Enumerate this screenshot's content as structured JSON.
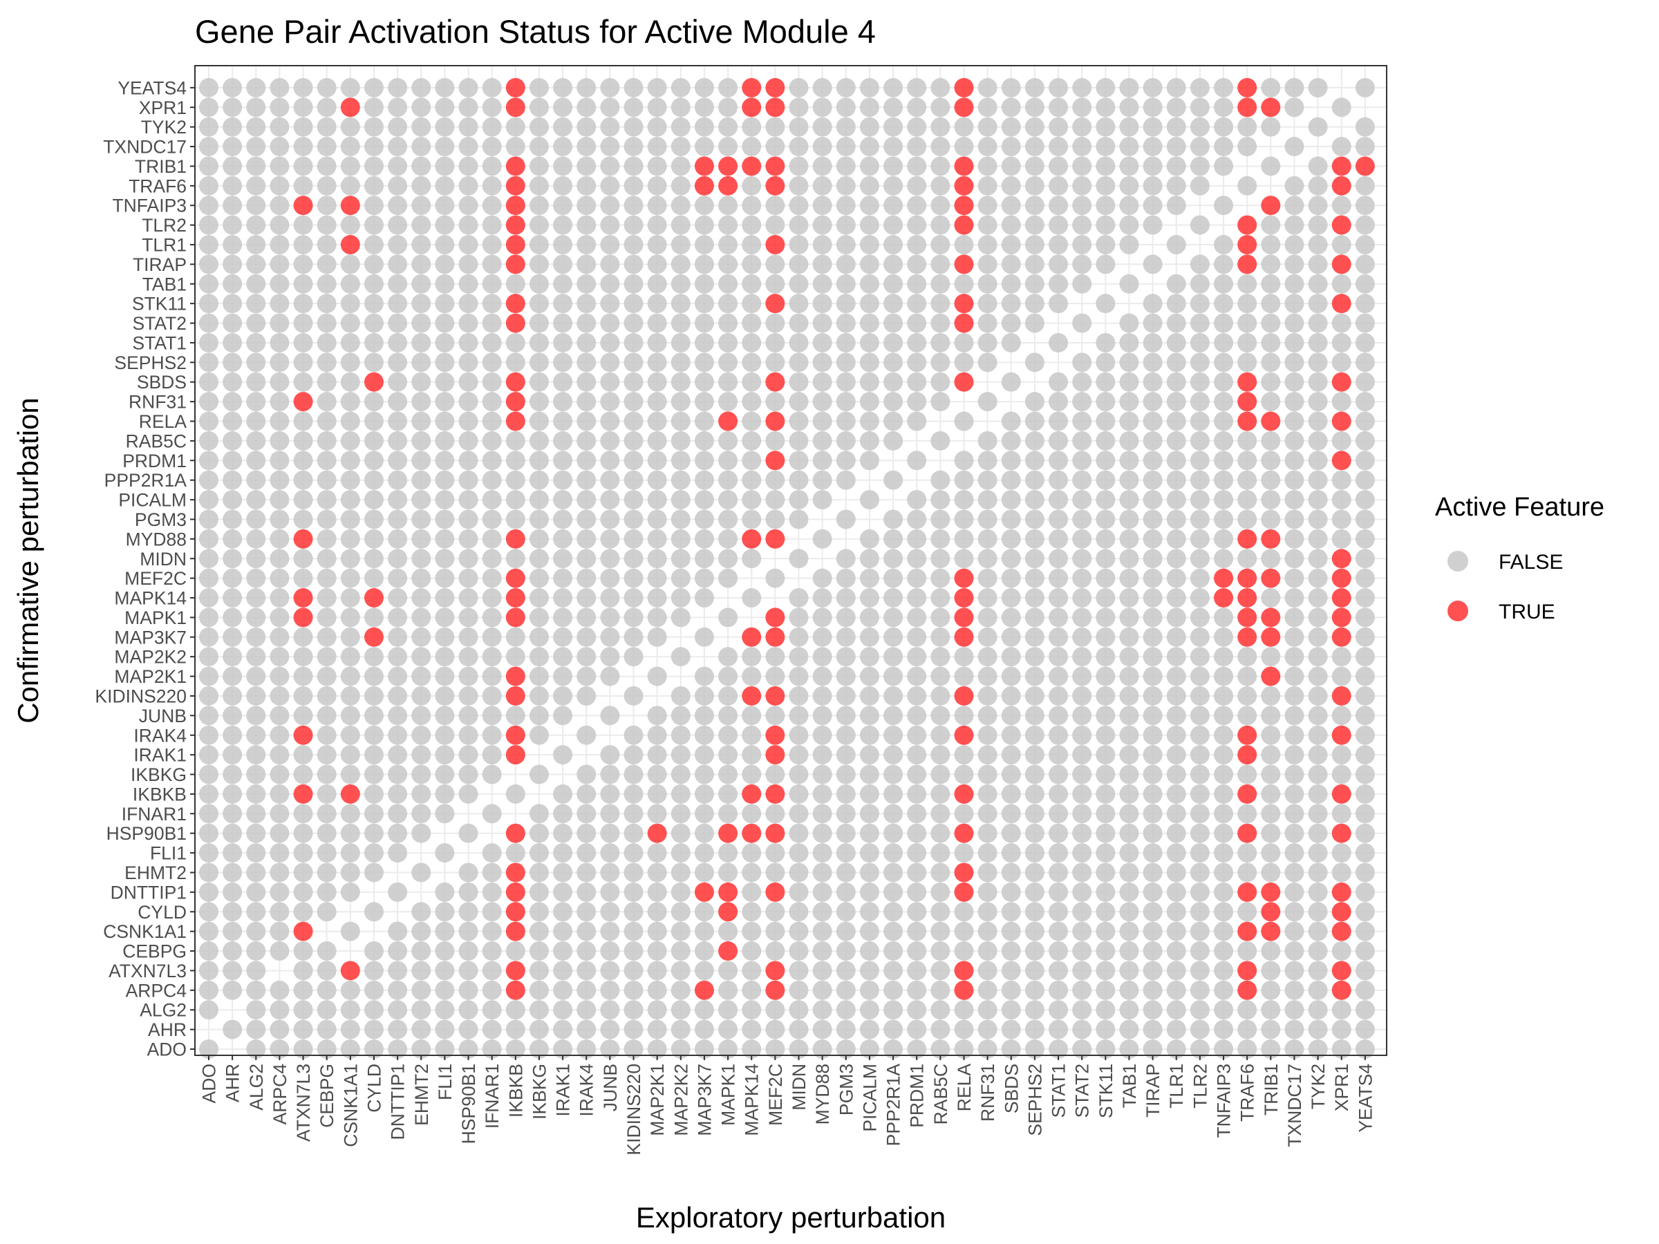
{
  "chart_data": {
    "type": "scatter",
    "title": "Gene Pair Activation Status for Active Module 4",
    "xlabel": "Exploratory perturbation",
    "ylabel": "Confirmative perturbation",
    "grid": true,
    "legend": {
      "title": "Active Feature",
      "position": "right",
      "entries": [
        {
          "label": "FALSE",
          "color": "#c8c8c8"
        },
        {
          "label": "TRUE",
          "color": "#ff3333"
        }
      ]
    },
    "colors": {
      "false": "#c8c8c8",
      "true": "#ff3333"
    },
    "genes": [
      "ADO",
      "AHR",
      "ALG2",
      "ARPC4",
      "ATXN7L3",
      "CEBPG",
      "CSNK1A1",
      "CYLD",
      "DNTTIP1",
      "EHMT2",
      "FLI1",
      "HSP90B1",
      "IFNAR1",
      "IKBKB",
      "IKBKG",
      "IRAK1",
      "IRAK4",
      "JUNB",
      "KIDINS220",
      "MAP2K1",
      "MAP2K2",
      "MAP3K7",
      "MAPK1",
      "MAPK14",
      "MEF2C",
      "MIDN",
      "MYD88",
      "PGM3",
      "PICALM",
      "PPP2R1A",
      "PRDM1",
      "RAB5C",
      "RELA",
      "RNF31",
      "SBDS",
      "SEPHS2",
      "STAT1",
      "STAT2",
      "STK11",
      "TAB1",
      "TIRAP",
      "TLR1",
      "TLR2",
      "TNFAIP3",
      "TRAF6",
      "TRIB1",
      "TXNDC17",
      "TYK2",
      "XPR1",
      "YEATS4"
    ],
    "x_categories": [
      "ADO",
      "AHR",
      "ALG2",
      "ARPC4",
      "ATXN7L3",
      "CEBPG",
      "CSNK1A1",
      "CYLD",
      "DNTTIP1",
      "EHMT2",
      "FLI1",
      "HSP90B1",
      "IFNAR1",
      "IKBKB",
      "IKBKG",
      "IRAK1",
      "IRAK4",
      "JUNB",
      "KIDINS220",
      "MAP2K1",
      "MAP2K2",
      "MAP3K7",
      "MAPK1",
      "MAPK14",
      "MEF2C",
      "MIDN",
      "MYD88",
      "PGM3",
      "PICALM",
      "PPP2R1A",
      "PRDM1",
      "RAB5C",
      "RELA",
      "RNF31",
      "SBDS",
      "SEPHS2",
      "STAT1",
      "STAT2",
      "STK11",
      "TAB1",
      "TIRAP",
      "TLR1",
      "TLR2",
      "TNFAIP3",
      "TRAF6",
      "TRIB1",
      "TXNDC17",
      "TYK2",
      "XPR1",
      "YEATS4"
    ],
    "y_categories": [
      "ADO",
      "AHR",
      "ALG2",
      "ARPC4",
      "ATXN7L3",
      "CEBPG",
      "CSNK1A1",
      "CYLD",
      "DNTTIP1",
      "EHMT2",
      "FLI1",
      "HSP90B1",
      "IFNAR1",
      "IKBKB",
      "IKBKG",
      "IRAK1",
      "IRAK4",
      "JUNB",
      "KIDINS220",
      "MAP2K1",
      "MAP2K2",
      "MAP3K7",
      "MAPK1",
      "MAPK14",
      "MEF2C",
      "MIDN",
      "MYD88",
      "PGM3",
      "PICALM",
      "PPP2R1A",
      "PRDM1",
      "RAB5C",
      "RELA",
      "RNF31",
      "SBDS",
      "SEPHS2",
      "STAT1",
      "STAT2",
      "STK11",
      "TAB1",
      "TIRAP",
      "TLR1",
      "TLR2",
      "TNFAIP3",
      "TRAF6",
      "TRIB1",
      "TXNDC17",
      "TYK2",
      "XPR1",
      "YEATS4"
    ],
    "missing_points": [
      [
        "AHR",
        "ADO"
      ],
      [
        "ADO",
        "AHR"
      ],
      [
        "AHR",
        "ALG2"
      ],
      [
        "ARPC4",
        "ATXN7L3"
      ],
      [
        "CEBPG",
        "CSNK1A1"
      ],
      [
        "CSNK1A1",
        "CEBPG"
      ],
      [
        "CYLD",
        "CSNK1A1"
      ],
      [
        "CSNK1A1",
        "CYLD"
      ],
      [
        "DNTTIP1",
        "CYLD"
      ],
      [
        "CYLD",
        "DNTTIP1"
      ],
      [
        "EHMT2",
        "DNTTIP1"
      ],
      [
        "DNTTIP1",
        "EHMT2"
      ],
      [
        "FLI1",
        "EHMT2"
      ],
      [
        "EHMT2",
        "FLI1"
      ],
      [
        "HSP90B1",
        "FLI1"
      ],
      [
        "FLI1",
        "HSP90B1"
      ],
      [
        "IFNAR1",
        "HSP90B1"
      ],
      [
        "HSP90B1",
        "IFNAR1"
      ],
      [
        "IKBKB",
        "IFNAR1"
      ],
      [
        "IFNAR1",
        "IKBKB"
      ],
      [
        "IKBKG",
        "IKBKB"
      ],
      [
        "IKBKB",
        "IKBKG"
      ],
      [
        "IRAK1",
        "IKBKG"
      ],
      [
        "IKBKG",
        "IRAK1"
      ],
      [
        "IRAK4",
        "IRAK1"
      ],
      [
        "IRAK1",
        "IRAK4"
      ],
      [
        "JUNB",
        "IRAK4"
      ],
      [
        "IRAK4",
        "JUNB"
      ],
      [
        "KIDINS220",
        "JUNB"
      ],
      [
        "JUNB",
        "KIDINS220"
      ],
      [
        "MAP2K1",
        "KIDINS220"
      ],
      [
        "KIDINS220",
        "MAP2K1"
      ],
      [
        "MAP2K2",
        "MAP2K1"
      ],
      [
        "MAP2K1",
        "MAP2K2"
      ],
      [
        "MAP3K7",
        "MAP2K2"
      ],
      [
        "MAP2K2",
        "MAP3K7"
      ],
      [
        "MAPK1",
        "MAP3K7"
      ],
      [
        "MAP3K7",
        "MAPK1"
      ],
      [
        "MAPK14",
        "MAPK1"
      ],
      [
        "MAPK1",
        "MAPK14"
      ],
      [
        "MEF2C",
        "MAPK14"
      ],
      [
        "MAPK14",
        "MEF2C"
      ],
      [
        "MIDN",
        "MEF2C"
      ],
      [
        "MEF2C",
        "MIDN"
      ],
      [
        "MYD88",
        "MIDN"
      ],
      [
        "MIDN",
        "MYD88"
      ],
      [
        "PGM3",
        "MYD88"
      ],
      [
        "MYD88",
        "PGM3"
      ],
      [
        "PICALM",
        "PGM3"
      ],
      [
        "PGM3",
        "PICALM"
      ],
      [
        "PPP2R1A",
        "PICALM"
      ],
      [
        "PICALM",
        "PPP2R1A"
      ],
      [
        "PRDM1",
        "PPP2R1A"
      ],
      [
        "PPP2R1A",
        "PRDM1"
      ],
      [
        "RAB5C",
        "PRDM1"
      ],
      [
        "PRDM1",
        "RAB5C"
      ],
      [
        "RELA",
        "RAB5C"
      ],
      [
        "RAB5C",
        "RELA"
      ],
      [
        "RNF31",
        "RELA"
      ],
      [
        "RELA",
        "RNF31"
      ],
      [
        "SBDS",
        "RNF31"
      ],
      [
        "RNF31",
        "SBDS"
      ],
      [
        "SEPHS2",
        "SBDS"
      ],
      [
        "SBDS",
        "SEPHS2"
      ],
      [
        "STAT1",
        "SEPHS2"
      ],
      [
        "SEPHS2",
        "STAT1"
      ],
      [
        "STAT2",
        "STAT1"
      ],
      [
        "STAT1",
        "STAT2"
      ],
      [
        "STK11",
        "STAT2"
      ],
      [
        "STAT2",
        "STK11"
      ],
      [
        "TAB1",
        "STK11"
      ],
      [
        "STK11",
        "TAB1"
      ],
      [
        "TIRAP",
        "TAB1"
      ],
      [
        "TAB1",
        "TIRAP"
      ],
      [
        "TLR1",
        "TIRAP"
      ],
      [
        "TIRAP",
        "TLR1"
      ],
      [
        "TLR2",
        "TLR1"
      ],
      [
        "TLR1",
        "TLR2"
      ],
      [
        "TNFAIP3",
        "TLR2"
      ],
      [
        "TLR2",
        "TNFAIP3"
      ],
      [
        "TRAF6",
        "TNFAIP3"
      ],
      [
        "TNFAIP3",
        "TRAF6"
      ],
      [
        "TRIB1",
        "TRAF6"
      ],
      [
        "TRAF6",
        "TRIB1"
      ],
      [
        "TXNDC17",
        "TRIB1"
      ],
      [
        "TRIB1",
        "TXNDC17"
      ],
      [
        "TYK2",
        "TXNDC17"
      ],
      [
        "TXNDC17",
        "TYK2"
      ],
      [
        "XPR1",
        "TYK2"
      ],
      [
        "TYK2",
        "XPR1"
      ],
      [
        "YEATS4",
        "XPR1"
      ],
      [
        "XPR1",
        "YEATS4"
      ]
    ],
    "active_points": [
      [
        "IKBKB",
        "YEATS4"
      ],
      [
        "MAPK14",
        "YEATS4"
      ],
      [
        "MEF2C",
        "YEATS4"
      ],
      [
        "RELA",
        "YEATS4"
      ],
      [
        "TRAF6",
        "YEATS4"
      ],
      [
        "XPR1",
        "YEATS4"
      ],
      [
        "CSNK1A1",
        "XPR1"
      ],
      [
        "IKBKB",
        "XPR1"
      ],
      [
        "MAPK14",
        "XPR1"
      ],
      [
        "MEF2C",
        "XPR1"
      ],
      [
        "RELA",
        "XPR1"
      ],
      [
        "TRAF6",
        "XPR1"
      ],
      [
        "TRIB1",
        "XPR1"
      ],
      [
        "IKBKB",
        "TRIB1"
      ],
      [
        "MAP3K7",
        "TRIB1"
      ],
      [
        "MAPK1",
        "TRIB1"
      ],
      [
        "MAPK14",
        "TRIB1"
      ],
      [
        "MEF2C",
        "TRIB1"
      ],
      [
        "RELA",
        "TRIB1"
      ],
      [
        "TRAF6",
        "TRIB1"
      ],
      [
        "XPR1",
        "TRIB1"
      ],
      [
        "YEATS4",
        "TRIB1"
      ],
      [
        "IKBKB",
        "TRAF6"
      ],
      [
        "MAP3K7",
        "TRAF6"
      ],
      [
        "MAPK1",
        "TRAF6"
      ],
      [
        "MEF2C",
        "TRAF6"
      ],
      [
        "RELA",
        "TRAF6"
      ],
      [
        "TNFAIP3",
        "TRAF6"
      ],
      [
        "XPR1",
        "TRAF6"
      ],
      [
        "ATXN7L3",
        "TNFAIP3"
      ],
      [
        "CSNK1A1",
        "TNFAIP3"
      ],
      [
        "IKBKB",
        "TNFAIP3"
      ],
      [
        "RELA",
        "TNFAIP3"
      ],
      [
        "TRAF6",
        "TNFAIP3"
      ],
      [
        "TRIB1",
        "TNFAIP3"
      ],
      [
        "IKBKB",
        "TLR2"
      ],
      [
        "RELA",
        "TLR2"
      ],
      [
        "TRAF6",
        "TLR2"
      ],
      [
        "XPR1",
        "TLR2"
      ],
      [
        "CSNK1A1",
        "TLR1"
      ],
      [
        "IKBKB",
        "TLR1"
      ],
      [
        "MEF2C",
        "TLR1"
      ],
      [
        "TRAF6",
        "TLR1"
      ],
      [
        "IKBKB",
        "TIRAP"
      ],
      [
        "RELA",
        "TIRAP"
      ],
      [
        "TRAF6",
        "TIRAP"
      ],
      [
        "XPR1",
        "TIRAP"
      ],
      [
        "IKBKB",
        "STK11"
      ],
      [
        "MEF2C",
        "STK11"
      ],
      [
        "RELA",
        "STK11"
      ],
      [
        "XPR1",
        "STK11"
      ],
      [
        "IKBKB",
        "STAT2"
      ],
      [
        "RELA",
        "STAT2"
      ],
      [
        "CYLD",
        "SBDS"
      ],
      [
        "IKBKB",
        "SBDS"
      ],
      [
        "MEF2C",
        "SBDS"
      ],
      [
        "RELA",
        "SBDS"
      ],
      [
        "TRAF6",
        "SBDS"
      ],
      [
        "XPR1",
        "SBDS"
      ],
      [
        "ATXN7L3",
        "RNF31"
      ],
      [
        "IKBKB",
        "RNF31"
      ],
      [
        "RELA",
        "RNF31"
      ],
      [
        "TRAF6",
        "RNF31"
      ],
      [
        "IKBKB",
        "RELA"
      ],
      [
        "MAPK1",
        "RELA"
      ],
      [
        "MEF2C",
        "RELA"
      ],
      [
        "TRAF6",
        "RELA"
      ],
      [
        "TRIB1",
        "RELA"
      ],
      [
        "XPR1",
        "RELA"
      ],
      [
        "MEF2C",
        "PRDM1"
      ],
      [
        "XPR1",
        "PRDM1"
      ],
      [
        "ATXN7L3",
        "MYD88"
      ],
      [
        "IKBKB",
        "MYD88"
      ],
      [
        "MAPK14",
        "MYD88"
      ],
      [
        "MEF2C",
        "MYD88"
      ],
      [
        "TRAF6",
        "MYD88"
      ],
      [
        "TRIB1",
        "MYD88"
      ],
      [
        "XPR1",
        "MIDN"
      ],
      [
        "IKBKB",
        "MEF2C"
      ],
      [
        "MAPK14",
        "MEF2C"
      ],
      [
        "RELA",
        "MEF2C"
      ],
      [
        "TNFAIP3",
        "MEF2C"
      ],
      [
        "TRAF6",
        "MEF2C"
      ],
      [
        "TRIB1",
        "MEF2C"
      ],
      [
        "XPR1",
        "MEF2C"
      ],
      [
        "ATXN7L3",
        "MAPK14"
      ],
      [
        "CYLD",
        "MAPK14"
      ],
      [
        "IKBKB",
        "MAPK14"
      ],
      [
        "MAPK1",
        "MAPK14"
      ],
      [
        "MEF2C",
        "MAPK14"
      ],
      [
        "RELA",
        "MAPK14"
      ],
      [
        "TNFAIP3",
        "MAPK14"
      ],
      [
        "TRAF6",
        "MAPK14"
      ],
      [
        "XPR1",
        "MAPK14"
      ],
      [
        "ATXN7L3",
        "MAPK1"
      ],
      [
        "IKBKB",
        "MAPK1"
      ],
      [
        "MAPK14",
        "MAPK1"
      ],
      [
        "MEF2C",
        "MAPK1"
      ],
      [
        "RELA",
        "MAPK1"
      ],
      [
        "TRAF6",
        "MAPK1"
      ],
      [
        "TRIB1",
        "MAPK1"
      ],
      [
        "XPR1",
        "MAPK1"
      ],
      [
        "CYLD",
        "MAP3K7"
      ],
      [
        "MAPK14",
        "MAP3K7"
      ],
      [
        "MEF2C",
        "MAP3K7"
      ],
      [
        "RELA",
        "MAP3K7"
      ],
      [
        "TRAF6",
        "MAP3K7"
      ],
      [
        "TRIB1",
        "MAP3K7"
      ],
      [
        "XPR1",
        "MAP3K7"
      ],
      [
        "IKBKB",
        "MAP2K1"
      ],
      [
        "TRIB1",
        "MAP2K1"
      ],
      [
        "IKBKB",
        "KIDINS220"
      ],
      [
        "MAP2K1",
        "KIDINS220"
      ],
      [
        "MAPK14",
        "KIDINS220"
      ],
      [
        "MEF2C",
        "KIDINS220"
      ],
      [
        "RELA",
        "KIDINS220"
      ],
      [
        "XPR1",
        "KIDINS220"
      ],
      [
        "ATXN7L3",
        "IRAK4"
      ],
      [
        "IKBKB",
        "IRAK4"
      ],
      [
        "MEF2C",
        "IRAK4"
      ],
      [
        "RELA",
        "IRAK4"
      ],
      [
        "TRAF6",
        "IRAK4"
      ],
      [
        "XPR1",
        "IRAK4"
      ],
      [
        "IKBKB",
        "IRAK1"
      ],
      [
        "MEF2C",
        "IRAK1"
      ],
      [
        "TRAF6",
        "IRAK1"
      ],
      [
        "ATXN7L3",
        "IKBKB"
      ],
      [
        "CSNK1A1",
        "IKBKB"
      ],
      [
        "MAPK14",
        "IKBKB"
      ],
      [
        "MEF2C",
        "IKBKB"
      ],
      [
        "RELA",
        "IKBKB"
      ],
      [
        "TRAF6",
        "IKBKB"
      ],
      [
        "XPR1",
        "IKBKB"
      ],
      [
        "IKBKB",
        "HSP90B1"
      ],
      [
        "MAP2K1",
        "HSP90B1"
      ],
      [
        "MAPK1",
        "HSP90B1"
      ],
      [
        "MAPK14",
        "HSP90B1"
      ],
      [
        "MEF2C",
        "HSP90B1"
      ],
      [
        "RELA",
        "HSP90B1"
      ],
      [
        "TRAF6",
        "HSP90B1"
      ],
      [
        "XPR1",
        "HSP90B1"
      ],
      [
        "IKBKB",
        "EHMT2"
      ],
      [
        "RELA",
        "EHMT2"
      ],
      [
        "IKBKB",
        "DNTTIP1"
      ],
      [
        "MAP3K7",
        "DNTTIP1"
      ],
      [
        "MAPK1",
        "DNTTIP1"
      ],
      [
        "MEF2C",
        "DNTTIP1"
      ],
      [
        "RELA",
        "DNTTIP1"
      ],
      [
        "TRAF6",
        "DNTTIP1"
      ],
      [
        "TRIB1",
        "DNTTIP1"
      ],
      [
        "XPR1",
        "DNTTIP1"
      ],
      [
        "IKBKB",
        "CYLD"
      ],
      [
        "MAPK1",
        "CYLD"
      ],
      [
        "TRIB1",
        "CYLD"
      ],
      [
        "XPR1",
        "CYLD"
      ],
      [
        "ATXN7L3",
        "CSNK1A1"
      ],
      [
        "IKBKB",
        "CSNK1A1"
      ],
      [
        "TRAF6",
        "CSNK1A1"
      ],
      [
        "TRIB1",
        "CSNK1A1"
      ],
      [
        "XPR1",
        "CSNK1A1"
      ],
      [
        "MAPK1",
        "CEBPG"
      ],
      [
        "CSNK1A1",
        "ATXN7L3"
      ],
      [
        "IKBKB",
        "ATXN7L3"
      ],
      [
        "MEF2C",
        "ATXN7L3"
      ],
      [
        "RELA",
        "ATXN7L3"
      ],
      [
        "TRAF6",
        "ATXN7L3"
      ],
      [
        "XPR1",
        "ATXN7L3"
      ],
      [
        "IKBKB",
        "ARPC4"
      ],
      [
        "MAP3K7",
        "ARPC4"
      ],
      [
        "MEF2C",
        "ARPC4"
      ],
      [
        "RELA",
        "ARPC4"
      ],
      [
        "TRAF6",
        "ARPC4"
      ],
      [
        "XPR1",
        "ARPC4"
      ]
    ]
  }
}
